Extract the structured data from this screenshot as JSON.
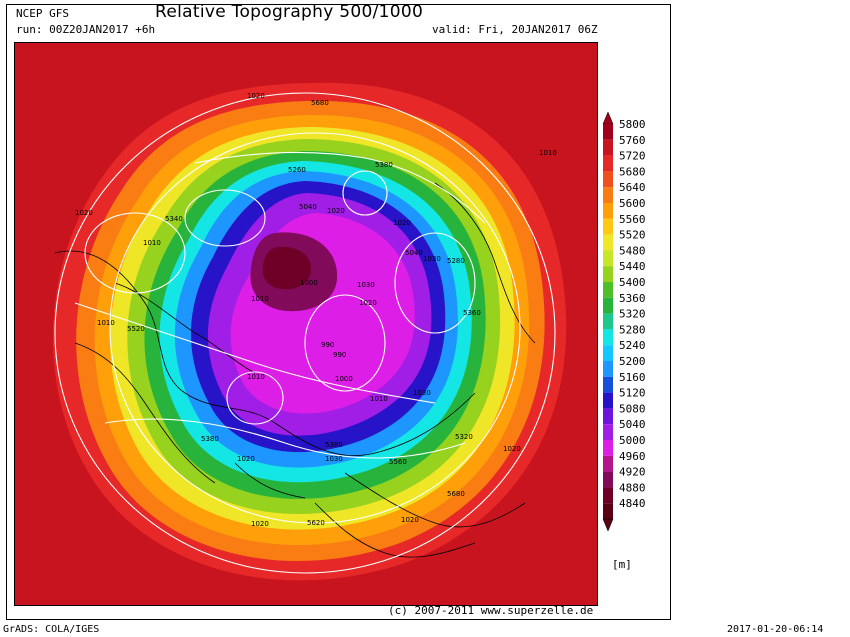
{
  "header": {
    "model": "NCEP GFS",
    "title": "Relative Topography 500/1000",
    "run": "run: 00Z20JAN2017 +6h",
    "valid": "valid: Fri, 20JAN2017 06Z"
  },
  "map": {
    "contour_labels": [
      "1020",
      "5680",
      "1010",
      "5380",
      "1020",
      "5340",
      "1010",
      "5040",
      "1020",
      "1010",
      "5520",
      "5260",
      "1000",
      "990",
      "1030",
      "1010",
      "1020",
      "5040",
      "1030",
      "5280",
      "1020",
      "5360",
      "1010",
      "5320",
      "1020",
      "5380",
      "1030",
      "5620",
      "1020",
      "5680",
      "1020",
      "990",
      "1030",
      "1010",
      "1020",
      "5380",
      "5560",
      "1000"
    ],
    "colors": {
      "land_outline": "#000000",
      "isobar": "#ffffff"
    }
  },
  "legend": {
    "unit": "[m]",
    "levels": [
      "5800",
      "5760",
      "5720",
      "5680",
      "5640",
      "5600",
      "5560",
      "5520",
      "5480",
      "5440",
      "5400",
      "5360",
      "5320",
      "5280",
      "5240",
      "5200",
      "5160",
      "5120",
      "5080",
      "5040",
      "5000",
      "4960",
      "4920",
      "4880",
      "4840"
    ],
    "colors": [
      "#a0001c",
      "#c8141e",
      "#e62828",
      "#f0501e",
      "#fa7d14",
      "#ffa00a",
      "#ffc814",
      "#f0e628",
      "#c8e628",
      "#96d21e",
      "#50be28",
      "#28b43c",
      "#1ec88c",
      "#14e6e6",
      "#14c8ff",
      "#1e96ff",
      "#1450dc",
      "#2814c8",
      "#6e14dc",
      "#a01ee6",
      "#dc1ee6",
      "#b4148c",
      "#820a5a",
      "#6e0028",
      "#5a0014"
    ]
  },
  "footer": {
    "copyright": "(c) 2007-2011 www.superzelle.de",
    "grads": "GrADS: COLA/IGES",
    "timestamp": "2017-01-20-06:14"
  }
}
